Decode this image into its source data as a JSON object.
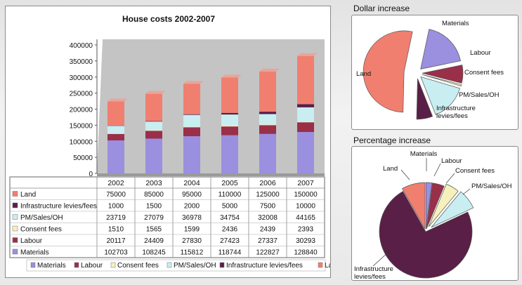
{
  "chart_data": [
    {
      "type": "bar",
      "stacked": true,
      "title": "House costs 2002-2007",
      "categories": [
        "2002",
        "2003",
        "2004",
        "2005",
        "2006",
        "2007"
      ],
      "ylim": [
        0,
        400000
      ],
      "yticks": [
        "0",
        "50000",
        "100000",
        "150000",
        "200000",
        "250000",
        "300000",
        "350000",
        "400000"
      ],
      "series": [
        {
          "name": "Materials",
          "table_label": "Materials",
          "color": "#9b8fe0",
          "values": [
            102703,
            108245,
            115812,
            118744,
            122827,
            128840
          ]
        },
        {
          "name": "Labour",
          "table_label": "Labour",
          "color": "#9a2f4a",
          "values": [
            20117,
            24409,
            27830,
            27423,
            27337,
            30293
          ]
        },
        {
          "name": "Consent fees",
          "table_label": "Consent fees",
          "color": "#f6f0bd",
          "values": [
            1510,
            1565,
            1599,
            2436,
            2439,
            2393
          ]
        },
        {
          "name": "PM/Sales/OH",
          "table_label": "PM/Sales/OH",
          "color": "#c8eef2",
          "values": [
            23719,
            27079,
            36978,
            34754,
            32008,
            44165
          ]
        },
        {
          "name": "Infrastructure levies/fees",
          "table_label": "Infrastructure levies/fees",
          "color": "#5a1f46",
          "values": [
            1000,
            1500,
            2000,
            5000,
            7500,
            10000
          ]
        },
        {
          "name": "Land",
          "table_label": "Land",
          "color": "#f07f70",
          "values": [
            75000,
            85000,
            95000,
            110000,
            125000,
            150000
          ]
        }
      ],
      "table_row_order": [
        "Land",
        "Infrastructure levies/fees",
        "PM/Sales/OH",
        "Consent fees",
        "Labour",
        "Materials"
      ],
      "legend": [
        "Materials",
        "Labour",
        "Consent fees",
        "PM/Sales/OH",
        "Infrastructure levies/fees",
        "Land"
      ]
    },
    {
      "type": "pie",
      "title": "Dollar increase",
      "slices": [
        {
          "label": "Materials",
          "value": 26137,
          "color": "#9b8fe0",
          "explode": 8
        },
        {
          "label": "Labour",
          "value": 10176,
          "color": "#9a2f4a",
          "explode": 8
        },
        {
          "label": "Consent fees",
          "value": 883,
          "color": "#f6f0bd",
          "explode": 8
        },
        {
          "label": "PM/Sales/OH",
          "value": 20446,
          "color": "#c8eef2",
          "explode": 8
        },
        {
          "label": "Infrastructure\nlevies/fees",
          "value": 9000,
          "color": "#5a1f46",
          "explode": 8
        },
        {
          "label": "Land",
          "value": 75000,
          "color": "#f07f70",
          "explode": 18
        }
      ]
    },
    {
      "type": "pie",
      "title": "Percentage increase",
      "slices": [
        {
          "label": "Materials",
          "value": 25,
          "color": "#9b8fe0",
          "explode": 4
        },
        {
          "label": "Labour",
          "value": 51,
          "color": "#9a2f4a",
          "explode": 4
        },
        {
          "label": "Consent fees",
          "value": 58,
          "color": "#f6f0bd",
          "explode": 8
        },
        {
          "label": "PM/Sales/OH",
          "value": 86,
          "color": "#c8eef2",
          "explode": 10
        },
        {
          "label": "Infrastructure\nlevies/fees",
          "value": 900,
          "color": "#5a1f46",
          "explode": 0
        },
        {
          "label": "Land",
          "value": 100,
          "color": "#f07f70",
          "explode": 4
        }
      ]
    }
  ]
}
